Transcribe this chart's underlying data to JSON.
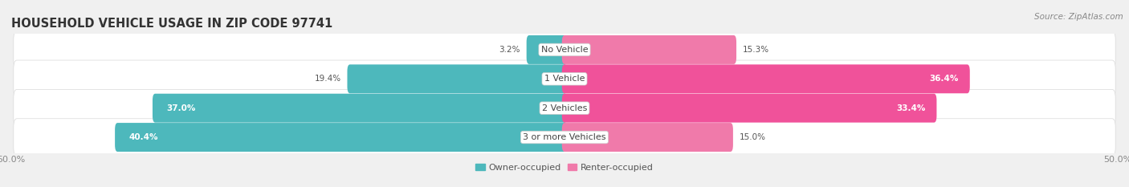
{
  "title": "HOUSEHOLD VEHICLE USAGE IN ZIP CODE 97741",
  "source": "Source: ZipAtlas.com",
  "categories": [
    "No Vehicle",
    "1 Vehicle",
    "2 Vehicles",
    "3 or more Vehicles"
  ],
  "owner_values": [
    3.2,
    19.4,
    37.0,
    40.4
  ],
  "renter_values": [
    15.3,
    36.4,
    33.4,
    15.0
  ],
  "owner_color": "#4db8bc",
  "renter_color": "#f07aaa",
  "renter_color_strong": "#f0529a",
  "title_fontsize": 10.5,
  "source_fontsize": 7.5,
  "tick_fontsize": 8,
  "label_fontsize": 8,
  "value_fontsize": 7.5,
  "xlim": [
    -50,
    50
  ],
  "xtick_labels": [
    "50.0%",
    "50.0%"
  ],
  "legend_labels": [
    "Owner-occupied",
    "Renter-occupied"
  ],
  "background_color": "#f0f0f0",
  "row_bg_color": "#ffffff",
  "row_border_color": "#d8d8d8"
}
